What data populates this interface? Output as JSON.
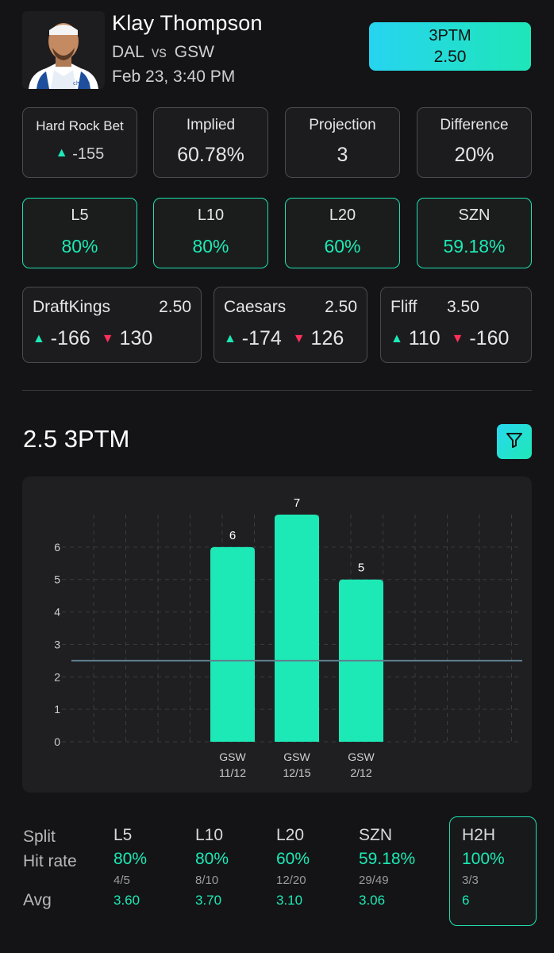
{
  "header": {
    "player_name": "Klay Thompson",
    "team": "DAL",
    "vs": "vs",
    "opponent": "GSW",
    "datetime": "Feb 23, 3:40 PM",
    "stat_type": "3PTM",
    "line": "2.50"
  },
  "summary": [
    {
      "label": "Hard Rock Bet",
      "value": "-155",
      "trend": "up"
    },
    {
      "label": "Implied",
      "value": "60.78%"
    },
    {
      "label": "Projection",
      "value": "3"
    },
    {
      "label": "Difference",
      "value": "20%"
    }
  ],
  "hit_rates": [
    {
      "label": "L5",
      "value": "80%"
    },
    {
      "label": "L10",
      "value": "80%"
    },
    {
      "label": "L20",
      "value": "60%"
    },
    {
      "label": "SZN",
      "value": "59.18%"
    }
  ],
  "books": [
    {
      "name": "DraftKings",
      "line": "2.50",
      "over": "-166",
      "under": "130"
    },
    {
      "name": "Caesars",
      "line": "2.50",
      "over": "-174",
      "under": "126"
    },
    {
      "name": "Fliff",
      "line": "3.50",
      "over": "110",
      "under": "-160"
    }
  ],
  "section_title": "2.5 3PTM",
  "colors": {
    "accent": "#1de9b6",
    "accent_cyan": "#28d8f0",
    "down": "#ff2f5a",
    "bg": "#141416",
    "card": "#1c1c1f"
  },
  "chart_data": {
    "type": "bar",
    "categories": [
      "GSW 11/12",
      "GSW 12/15",
      "GSW 2/12"
    ],
    "category_lines": [
      [
        "GSW",
        "11/12"
      ],
      [
        "GSW",
        "12/15"
      ],
      [
        "GSW",
        "2/12"
      ]
    ],
    "values": [
      6,
      7,
      5
    ],
    "y_ticks": [
      0,
      1,
      2,
      3,
      4,
      5,
      6
    ],
    "ylim": [
      0,
      7
    ],
    "threshold": 2.5,
    "grid": true,
    "bar_color": "#1de9b6"
  },
  "splits": {
    "row_labels": [
      "Split",
      "Hit rate",
      "Avg"
    ],
    "columns": [
      {
        "name": "L5",
        "hit_rate": "80%",
        "fraction": "4/5",
        "avg": "3.60"
      },
      {
        "name": "L10",
        "hit_rate": "80%",
        "fraction": "8/10",
        "avg": "3.70"
      },
      {
        "name": "L20",
        "hit_rate": "60%",
        "fraction": "12/20",
        "avg": "3.10"
      },
      {
        "name": "SZN",
        "hit_rate": "59.18%",
        "fraction": "29/49",
        "avg": "3.06"
      },
      {
        "name": "H2H",
        "hit_rate": "100%",
        "fraction": "3/3",
        "avg": "6",
        "selected": true
      }
    ]
  },
  "icons": {
    "filter": "filter-icon",
    "up": "triangle-up-icon",
    "down": "triangle-down-icon"
  }
}
